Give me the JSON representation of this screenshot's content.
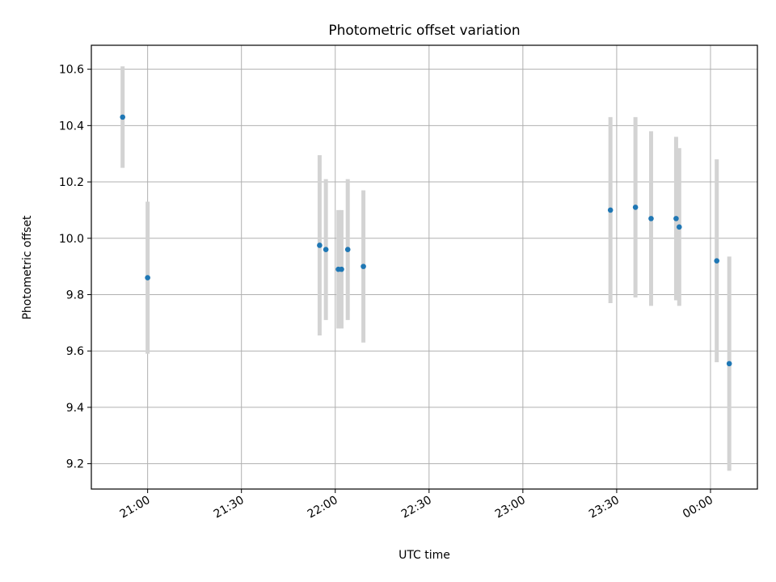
{
  "chart_data": {
    "type": "scatter",
    "title": "Photometric offset variation",
    "xlabel": "UTC time",
    "ylabel": "Photometric offset",
    "grid": true,
    "x_tick_labels": [
      "21:00",
      "21:30",
      "22:00",
      "22:30",
      "23:00",
      "23:30",
      "00:00"
    ],
    "y_tick_labels": [
      "9.2",
      "9.4",
      "9.6",
      "9.8",
      "10.0",
      "10.2",
      "10.4",
      "10.6"
    ],
    "x_ticks": [
      "21:00",
      "21:30",
      "22:00",
      "22:30",
      "23:00",
      "23:30",
      "00:00"
    ],
    "y_ticks": [
      9.2,
      9.4,
      9.6,
      9.8,
      10.0,
      10.2,
      10.4,
      10.6
    ],
    "xlim": [
      "20:42",
      "00:15"
    ],
    "ylim": [
      9.11,
      10.685
    ],
    "colors": {
      "marker": "#1f77b4",
      "errorbar": "#d3d3d3",
      "grid": "#b0b0b0"
    },
    "series": [
      {
        "points": [
          {
            "x": "20:52",
            "y": 10.43,
            "err": 0.18
          },
          {
            "x": "21:00",
            "y": 9.86,
            "err": 0.27
          },
          {
            "x": "21:55",
            "y": 9.975,
            "err": 0.32
          },
          {
            "x": "21:57",
            "y": 9.96,
            "err": 0.25
          },
          {
            "x": "22:01",
            "y": 9.89,
            "err": 0.21
          },
          {
            "x": "22:02",
            "y": 9.89,
            "err": 0.21
          },
          {
            "x": "22:04",
            "y": 9.96,
            "err": 0.25
          },
          {
            "x": "22:09",
            "y": 9.9,
            "err": 0.27
          },
          {
            "x": "23:28",
            "y": 10.1,
            "err": 0.33
          },
          {
            "x": "23:36",
            "y": 10.11,
            "err": 0.32
          },
          {
            "x": "23:41",
            "y": 10.07,
            "err": 0.31
          },
          {
            "x": "23:49",
            "y": 10.07,
            "err": 0.29
          },
          {
            "x": "23:50",
            "y": 10.04,
            "err": 0.28
          },
          {
            "x": "00:02",
            "y": 9.92,
            "err": 0.36
          },
          {
            "x": "00:06",
            "y": 9.555,
            "err": 0.38
          }
        ]
      }
    ]
  }
}
